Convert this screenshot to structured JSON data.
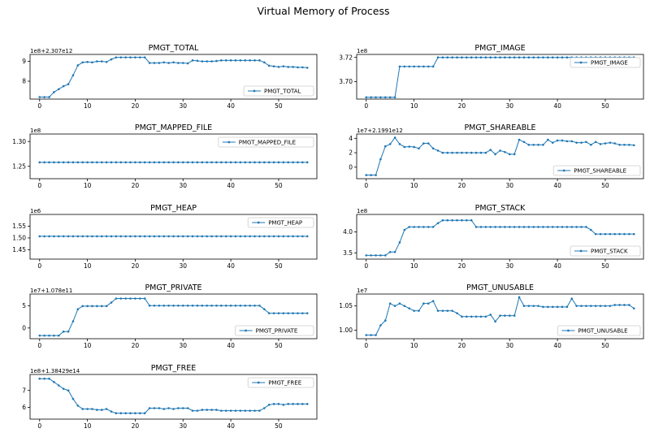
{
  "figure": {
    "title": "Virtual Memory of Process",
    "series_color": "#1f77b4"
  },
  "chart_data": [
    {
      "type": "line",
      "title": "PMGT_TOTAL",
      "offset_label": "1e8+2.307e12",
      "legend": "PMGT_TOTAL",
      "legend_position": "lower-right",
      "xlim": [
        -2,
        58
      ],
      "xticks": [
        0,
        10,
        20,
        30,
        40,
        50
      ],
      "ylim": [
        7.1,
        9.35
      ],
      "yticks": [
        8,
        9
      ],
      "values": [
        7.2,
        7.2,
        7.2,
        7.45,
        7.6,
        7.75,
        7.85,
        8.3,
        8.8,
        8.95,
        8.97,
        8.95,
        9.0,
        9.0,
        8.97,
        9.1,
        9.2,
        9.2,
        9.2,
        9.2,
        9.2,
        9.2,
        9.2,
        8.92,
        8.92,
        8.92,
        8.95,
        8.92,
        8.95,
        8.92,
        8.92,
        8.9,
        9.05,
        9.03,
        9.0,
        9.0,
        9.0,
        9.02,
        9.05,
        9.05,
        9.05,
        9.05,
        9.05,
        9.05,
        9.05,
        9.05,
        9.05,
        8.95,
        8.78,
        8.75,
        8.72,
        8.75,
        8.72,
        8.72,
        8.7,
        8.7,
        8.68
      ]
    },
    {
      "type": "line",
      "title": "PMGT_IMAGE",
      "offset_label": "1e8",
      "legend": "PMGT_IMAGE",
      "legend_position": "upper-right",
      "xlim": [
        -2,
        58
      ],
      "xticks": [
        0,
        10,
        20,
        30,
        40,
        50
      ],
      "ylim": [
        3.6855,
        3.7225
      ],
      "yticks": [
        3.7,
        3.72
      ],
      "ytick_labels": [
        "3.70",
        "3.72"
      ],
      "values": [
        3.687,
        3.687,
        3.687,
        3.687,
        3.687,
        3.687,
        3.687,
        3.7125,
        3.7125,
        3.7125,
        3.7125,
        3.7125,
        3.7125,
        3.7125,
        3.7125,
        3.72,
        3.72,
        3.72,
        3.72,
        3.72,
        3.72,
        3.72,
        3.72,
        3.72,
        3.72,
        3.72,
        3.72,
        3.72,
        3.72,
        3.72,
        3.72,
        3.72,
        3.72,
        3.72,
        3.72,
        3.72,
        3.72,
        3.72,
        3.72,
        3.72,
        3.72,
        3.72,
        3.72,
        3.72,
        3.72,
        3.72,
        3.72,
        3.72,
        3.72,
        3.72,
        3.72,
        3.72,
        3.72,
        3.72,
        3.72,
        3.72,
        3.72
      ]
    },
    {
      "type": "line",
      "title": "PMGT_MAPPED_FILE",
      "offset_label": "1e8",
      "legend": "PMGT_MAPPED_FILE",
      "legend_position": "upper-right",
      "xlim": [
        -2,
        58
      ],
      "xticks": [
        0,
        10,
        20,
        30,
        40,
        50
      ],
      "ylim": [
        1.225,
        1.315
      ],
      "yticks": [
        1.25,
        1.3
      ],
      "ytick_labels": [
        "1.25",
        "1.30"
      ],
      "values": [
        1.258,
        1.258,
        1.258,
        1.258,
        1.258,
        1.258,
        1.258,
        1.258,
        1.258,
        1.258,
        1.258,
        1.258,
        1.258,
        1.258,
        1.258,
        1.258,
        1.258,
        1.258,
        1.258,
        1.258,
        1.258,
        1.258,
        1.258,
        1.258,
        1.258,
        1.258,
        1.258,
        1.258,
        1.258,
        1.258,
        1.258,
        1.258,
        1.258,
        1.258,
        1.258,
        1.258,
        1.258,
        1.258,
        1.258,
        1.258,
        1.258,
        1.258,
        1.258,
        1.258,
        1.258,
        1.258,
        1.258,
        1.258,
        1.258,
        1.258,
        1.258,
        1.258,
        1.258,
        1.258,
        1.258,
        1.258,
        1.258
      ]
    },
    {
      "type": "line",
      "title": "PMGT_SHAREABLE",
      "offset_label": "1e7+2.1991e12",
      "legend": "PMGT_SHAREABLE",
      "legend_position": "lower-right",
      "xlim": [
        -2,
        58
      ],
      "xticks": [
        0,
        10,
        20,
        30,
        40,
        50
      ],
      "ylim": [
        -1.6,
        4.6
      ],
      "yticks": [
        0,
        2,
        4
      ],
      "values": [
        -1.1,
        -1.1,
        -1.1,
        1.1,
        2.9,
        3.2,
        4.1,
        3.2,
        2.8,
        2.85,
        2.8,
        2.6,
        3.3,
        3.3,
        2.6,
        2.3,
        2.0,
        2.0,
        2.0,
        2.0,
        2.0,
        2.0,
        2.0,
        2.0,
        2.0,
        2.0,
        2.4,
        1.8,
        2.3,
        2.1,
        1.8,
        1.8,
        3.8,
        3.5,
        3.1,
        3.1,
        3.1,
        3.1,
        3.8,
        3.4,
        3.7,
        3.7,
        3.6,
        3.6,
        3.4,
        3.4,
        3.5,
        3.1,
        3.5,
        3.2,
        3.3,
        3.4,
        3.3,
        3.1,
        3.1,
        3.1,
        3.05
      ]
    },
    {
      "type": "line",
      "title": "PMGT_HEAP",
      "offset_label": "1e6",
      "legend": "PMGT_HEAP",
      "legend_position": "upper-right",
      "xlim": [
        -2,
        58
      ],
      "xticks": [
        0,
        10,
        20,
        30,
        40,
        50
      ],
      "ylim": [
        1.41,
        1.6
      ],
      "yticks": [
        1.45,
        1.5,
        1.55
      ],
      "ytick_labels": [
        "1.45",
        "1.50",
        "1.55"
      ],
      "values": [
        1.507,
        1.507,
        1.507,
        1.507,
        1.507,
        1.507,
        1.507,
        1.507,
        1.507,
        1.507,
        1.507,
        1.507,
        1.507,
        1.507,
        1.507,
        1.507,
        1.507,
        1.507,
        1.507,
        1.507,
        1.507,
        1.507,
        1.507,
        1.507,
        1.507,
        1.507,
        1.507,
        1.507,
        1.507,
        1.507,
        1.507,
        1.507,
        1.507,
        1.507,
        1.507,
        1.507,
        1.507,
        1.507,
        1.507,
        1.507,
        1.507,
        1.507,
        1.507,
        1.507,
        1.507,
        1.507,
        1.507,
        1.507,
        1.507,
        1.507,
        1.507,
        1.507,
        1.507,
        1.507,
        1.507,
        1.507,
        1.507
      ]
    },
    {
      "type": "line",
      "title": "PMGT_STACK",
      "offset_label": "1e8",
      "legend": "PMGT_STACK",
      "legend_position": "lower-right",
      "xlim": [
        -2,
        58
      ],
      "xticks": [
        0,
        10,
        20,
        30,
        40,
        50
      ],
      "ylim": [
        3.35,
        4.42
      ],
      "yticks": [
        3.5,
        4.0
      ],
      "ytick_labels": [
        "3.5",
        "4.0"
      ],
      "values": [
        3.44,
        3.44,
        3.44,
        3.44,
        3.44,
        3.52,
        3.52,
        3.75,
        4.05,
        4.12,
        4.12,
        4.12,
        4.12,
        4.12,
        4.12,
        4.21,
        4.28,
        4.28,
        4.28,
        4.28,
        4.28,
        4.28,
        4.28,
        4.12,
        4.12,
        4.12,
        4.12,
        4.12,
        4.12,
        4.12,
        4.12,
        4.12,
        4.12,
        4.12,
        4.12,
        4.12,
        4.12,
        4.12,
        4.12,
        4.12,
        4.12,
        4.12,
        4.12,
        4.12,
        4.12,
        4.12,
        4.12,
        4.05,
        3.95,
        3.95,
        3.95,
        3.95,
        3.95,
        3.95,
        3.95,
        3.95,
        3.95
      ]
    },
    {
      "type": "line",
      "title": "PMGT_PRIVATE",
      "offset_label": "1e7+1.078e11",
      "legend": "PMGT_PRIVATE",
      "legend_position": "lower-right",
      "xlim": [
        -2,
        58
      ],
      "xticks": [
        0,
        10,
        20,
        30,
        40,
        50
      ],
      "ylim": [
        -2.4,
        7.6
      ],
      "yticks": [
        0,
        5
      ],
      "values": [
        -1.7,
        -1.7,
        -1.7,
        -1.7,
        -1.7,
        -0.8,
        -0.8,
        1.5,
        4.2,
        4.9,
        4.9,
        4.9,
        4.9,
        4.9,
        4.9,
        5.7,
        6.6,
        6.6,
        6.6,
        6.6,
        6.6,
        6.6,
        6.6,
        5.0,
        5.0,
        5.0,
        5.0,
        5.0,
        5.0,
        5.0,
        5.0,
        5.0,
        5.0,
        5.0,
        5.0,
        5.0,
        5.0,
        5.0,
        5.0,
        5.0,
        5.0,
        5.0,
        5.0,
        5.0,
        5.0,
        5.0,
        5.0,
        4.2,
        3.3,
        3.3,
        3.3,
        3.3,
        3.3,
        3.3,
        3.3,
        3.3,
        3.3
      ]
    },
    {
      "type": "line",
      "title": "PMGT_UNUSABLE",
      "offset_label": "1e7",
      "legend": "PMGT_UNUSABLE",
      "legend_position": "lower-right",
      "xlim": [
        -2,
        58
      ],
      "xticks": [
        0,
        10,
        20,
        30,
        40,
        50
      ],
      "ylim": [
        0.9825,
        1.0745
      ],
      "yticks": [
        1.0,
        1.05
      ],
      "ytick_labels": [
        "1.00",
        "1.05"
      ],
      "values": [
        0.99,
        0.99,
        0.99,
        1.01,
        1.02,
        1.055,
        1.05,
        1.055,
        1.05,
        1.045,
        1.04,
        1.04,
        1.055,
        1.055,
        1.06,
        1.04,
        1.04,
        1.04,
        1.04,
        1.035,
        1.028,
        1.028,
        1.028,
        1.028,
        1.028,
        1.028,
        1.032,
        1.018,
        1.03,
        1.03,
        1.03,
        1.03,
        1.068,
        1.05,
        1.05,
        1.05,
        1.05,
        1.048,
        1.048,
        1.048,
        1.048,
        1.048,
        1.048,
        1.065,
        1.05,
        1.05,
        1.05,
        1.05,
        1.05,
        1.05,
        1.05,
        1.05,
        1.052,
        1.052,
        1.052,
        1.052,
        1.045
      ]
    },
    {
      "type": "line",
      "title": "PMGT_FREE",
      "offset_label": "1e8+1.38429e14",
      "legend": "PMGT_FREE",
      "legend_position": "upper-right",
      "xlim": [
        -2,
        58
      ],
      "xticks": [
        0,
        10,
        20,
        30,
        40,
        50
      ],
      "ylim": [
        5.3,
        7.95
      ],
      "yticks": [
        6,
        7
      ],
      "values": [
        7.7,
        7.7,
        7.7,
        7.5,
        7.3,
        7.1,
        7.0,
        6.5,
        6.1,
        5.9,
        5.9,
        5.9,
        5.85,
        5.85,
        5.9,
        5.75,
        5.65,
        5.65,
        5.65,
        5.65,
        5.65,
        5.65,
        5.65,
        5.95,
        5.95,
        5.95,
        5.9,
        5.95,
        5.9,
        5.95,
        5.95,
        5.95,
        5.8,
        5.8,
        5.85,
        5.85,
        5.85,
        5.85,
        5.8,
        5.8,
        5.8,
        5.8,
        5.8,
        5.8,
        5.8,
        5.8,
        5.8,
        5.95,
        6.15,
        6.2,
        6.2,
        6.15,
        6.2,
        6.2,
        6.2,
        6.2,
        6.2
      ]
    }
  ]
}
